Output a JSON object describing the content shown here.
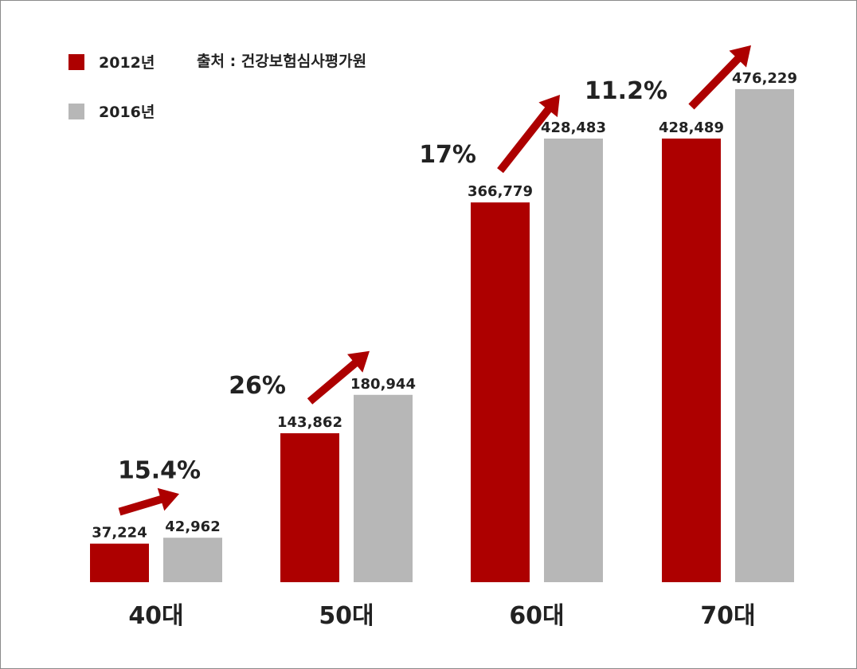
{
  "chart_data": {
    "type": "bar",
    "categories": [
      "40대",
      "50대",
      "60대",
      "70대"
    ],
    "series": [
      {
        "name": "2012년",
        "values": [
          37224,
          143862,
          366779,
          428489
        ],
        "labels": [
          "37,224",
          "143,862",
          "366,779",
          "428,489"
        ]
      },
      {
        "name": "2016년",
        "values": [
          42962,
          180944,
          428483,
          476229
        ],
        "labels": [
          "42,962",
          "180,944",
          "428,483",
          "476,229"
        ]
      }
    ],
    "growth_labels": [
      "15.4%",
      "26%",
      "17%",
      "11.2%"
    ],
    "source": "출처 : 건강보험심사평가원",
    "ylim": [
      0,
      500000
    ],
    "grid": false,
    "legend_position": "top-left"
  },
  "colors": {
    "series_2012": "#ad0000",
    "series_2016": "#b7b7b7",
    "arrow": "#ad0000",
    "text": "#222222"
  }
}
